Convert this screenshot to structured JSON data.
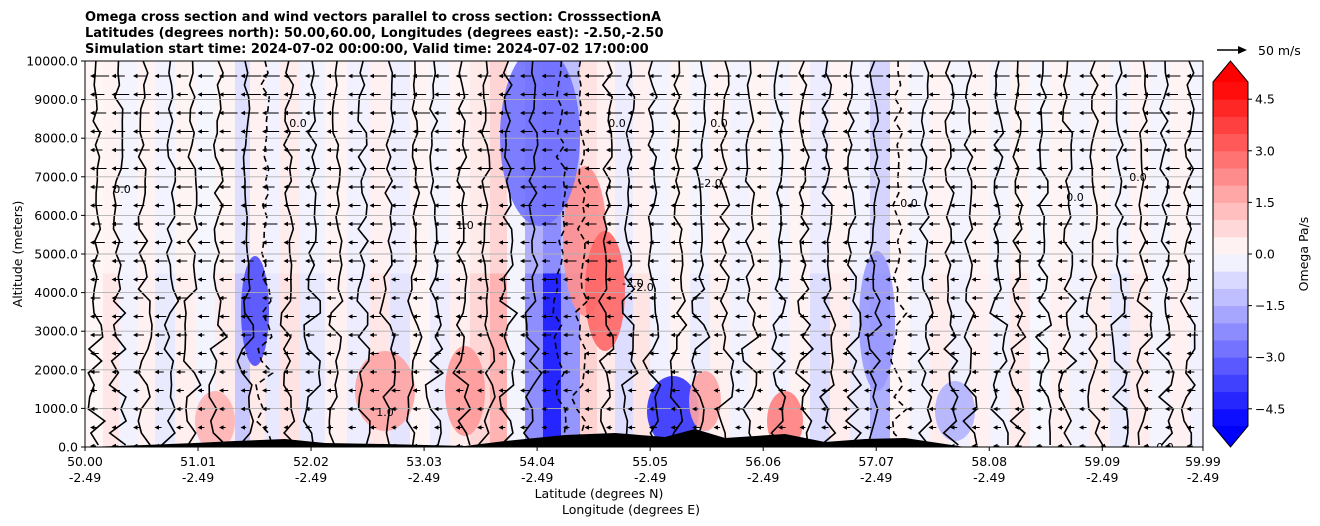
{
  "chart_data": {
    "type": "contour",
    "title": [
      "Omega cross section and wind vectors parallel to cross section: CrosssectionA",
      "Latitudes (degrees north): 50.00,60.00, Longitudes (degrees east): -2.50,-2.50",
      "Simulation start time: 2024-07-02 00:00:00, Valid time: 2024-07-02 17:00:00"
    ],
    "ylabel": "Altitude (meters)",
    "xlabel_lat": "Latitude (degrees N)",
    "xlabel_lon": "Longitude (degrees E)",
    "ylim": [
      0,
      10000
    ],
    "xlim": [
      50.0,
      59.99
    ],
    "y_ticks": [
      "0.0",
      "1000.0",
      "2000.0",
      "3000.0",
      "4000.0",
      "5000.0",
      "6000.0",
      "7000.0",
      "8000.0",
      "9000.0",
      "10000.0"
    ],
    "x_ticks_lat": [
      "50.00",
      "51.01",
      "52.02",
      "53.03",
      "54.04",
      "55.05",
      "56.06",
      "57.07",
      "58.08",
      "59.09",
      "59.99"
    ],
    "x_ticks_lon": [
      "-2.49",
      "-2.49",
      "-2.49",
      "-2.49",
      "-2.49",
      "-2.49",
      "-2.49",
      "-2.49",
      "-2.49",
      "-2.49",
      "-2.49"
    ],
    "colorbar": {
      "label": "Omega Pa/s",
      "range": [
        -5.0,
        5.0
      ],
      "ticks": [
        "4.5",
        "3.0",
        "1.5",
        "0.0",
        "−1.5",
        "−3.0",
        "−4.5"
      ],
      "ticks_values": [
        4.5,
        3.0,
        1.5,
        0.0,
        -1.5,
        -3.0,
        -4.5
      ],
      "colormap": "bwr",
      "extend": "both"
    },
    "quiver_key": "50 m/s",
    "contour_labels": [
      "0.0",
      "1.0",
      "-1.0",
      "2.0",
      "-2.0"
    ]
  }
}
